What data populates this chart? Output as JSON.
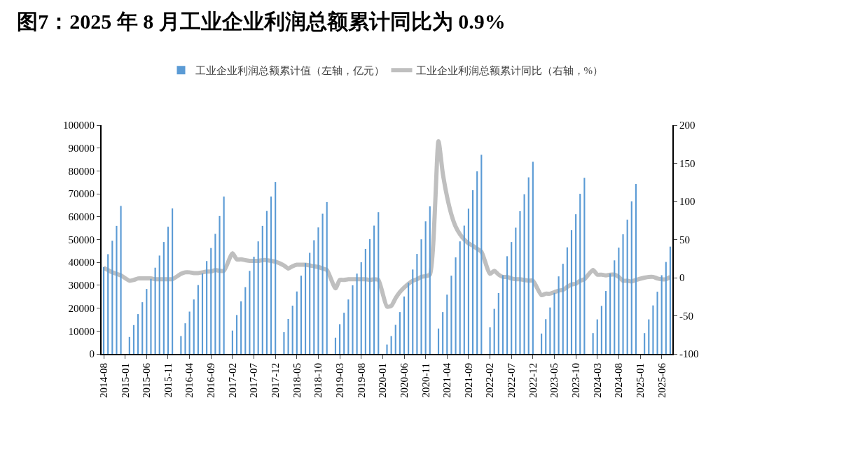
{
  "chart_data": {
    "type": "bar",
    "title": "图7：2025 年 8 月工业企业利润总额累计同比为 0.9%",
    "categories": [
      "2014-08",
      null,
      null,
      null,
      null,
      "2015-01",
      null,
      null,
      null,
      null,
      "2015-06",
      null,
      null,
      null,
      null,
      "2015-11",
      null,
      null,
      null,
      null,
      "2016-04",
      null,
      null,
      null,
      null,
      "2016-09",
      null,
      null,
      null,
      null,
      "2017-02",
      null,
      null,
      null,
      null,
      "2017-07",
      null,
      null,
      null,
      null,
      "2017-12",
      null,
      null,
      null,
      null,
      "2018-05",
      null,
      null,
      null,
      null,
      "2018-10",
      null,
      null,
      null,
      null,
      "2019-03",
      null,
      null,
      null,
      null,
      "2019-08",
      null,
      null,
      null,
      null,
      "2020-01",
      null,
      null,
      null,
      null,
      "2020-06",
      null,
      null,
      null,
      null,
      "2020-11",
      null,
      null,
      null,
      null,
      "2021-04",
      null,
      null,
      null,
      null,
      "2021-09",
      null,
      null,
      null,
      null,
      "2022-02",
      null,
      null,
      null,
      null,
      "2022-07",
      null,
      null,
      null,
      null,
      "2022-12",
      null,
      null,
      null,
      null,
      "2023-05",
      null,
      null,
      null,
      null,
      "2023-10",
      null,
      null,
      null,
      null,
      "2024-03",
      null,
      null,
      null,
      null,
      "2024-08",
      null,
      null,
      null,
      null,
      "2025-01",
      null,
      null,
      null,
      null,
      "2025-06",
      null,
      null
    ],
    "series": [
      {
        "name": "工业企业利润总额累计值（左轴，亿元）",
        "color": "#5b9bd5",
        "values": [
          38000,
          43600,
          49500,
          56000,
          64700,
          null,
          7400,
          12600,
          17400,
          22600,
          28400,
          32800,
          37700,
          43000,
          48900,
          55600,
          63600,
          null,
          7800,
          13400,
          18500,
          23800,
          30100,
          35200,
          40600,
          46300,
          52500,
          60300,
          68800,
          null,
          10200,
          17000,
          23000,
          29200,
          36300,
          42500,
          49200,
          56000,
          62500,
          68800,
          75200,
          null,
          9500,
          15300,
          21100,
          27300,
          34200,
          39700,
          44200,
          49700,
          55300,
          61300,
          66400,
          null,
          7100,
          13000,
          18000,
          23800,
          30000,
          35100,
          40100,
          45900,
          50200,
          56100,
          62000,
          null,
          4100,
          7800,
          12700,
          18300,
          25100,
          31100,
          36900,
          43700,
          50100,
          58000,
          64500,
          null,
          11100,
          18300,
          25900,
          34200,
          42200,
          49200,
          56100,
          63500,
          71600,
          79800,
          87100,
          null,
          11600,
          19700,
          26600,
          34400,
          42700,
          48900,
          55200,
          62400,
          69800,
          77200,
          84000,
          null,
          8900,
          15200,
          20300,
          26700,
          33900,
          39400,
          46600,
          54100,
          61100,
          70000,
          77000,
          null,
          9100,
          15100,
          21000,
          27500,
          35100,
          40900,
          46500,
          52300,
          58700,
          66700,
          74300,
          null,
          9100,
          15100,
          21200,
          27200,
          34400,
          40200,
          46900
        ]
      },
      {
        "name": "工业企业利润总额累计同比（右轴，%）",
        "type": "line",
        "axis": "y2",
        "color": "#bfbfbf",
        "values": [
          13,
          10,
          7,
          5,
          3,
          null,
          -4,
          -3,
          -1,
          -1,
          -1,
          -1,
          -2,
          -2,
          -2,
          -2,
          -2,
          null,
          5,
          7,
          7,
          6,
          6,
          7,
          8,
          8,
          10,
          9,
          9,
          null,
          32,
          24,
          24,
          23,
          22,
          22,
          22,
          23,
          23,
          22,
          21,
          null,
          16,
          12,
          15,
          17,
          17,
          17,
          16,
          15,
          14,
          12,
          10,
          null,
          -14,
          -3,
          -3,
          -2,
          -2,
          -2,
          -2,
          -2,
          -3,
          -2,
          -3,
          null,
          -38,
          -37,
          -27,
          -19,
          -13,
          -8,
          -4,
          -2,
          1,
          2,
          4,
          null,
          179,
          137,
          106,
          83,
          67,
          57,
          50,
          45,
          42,
          38,
          34,
          null,
          5,
          9,
          4,
          1,
          1,
          -1,
          -2,
          -2,
          -3,
          -4,
          -4,
          null,
          -23,
          -21,
          -21,
          -19,
          -17,
          -16,
          -12,
          -9,
          -8,
          -4,
          -2,
          null,
          10,
          4,
          4,
          3,
          4,
          4,
          1,
          -4,
          -4,
          -5,
          -3,
          null,
          0,
          1,
          1,
          -1,
          -2,
          -2,
          1
        ]
      }
    ],
    "ylim": [
      0,
      100000
    ],
    "yticks": [
      0,
      10000,
      20000,
      30000,
      40000,
      50000,
      60000,
      70000,
      80000,
      90000,
      100000
    ],
    "y2lim": [
      -100,
      200
    ],
    "y2ticks": [
      -100,
      -50,
      0,
      50,
      100,
      150,
      200
    ],
    "legend": "top"
  }
}
